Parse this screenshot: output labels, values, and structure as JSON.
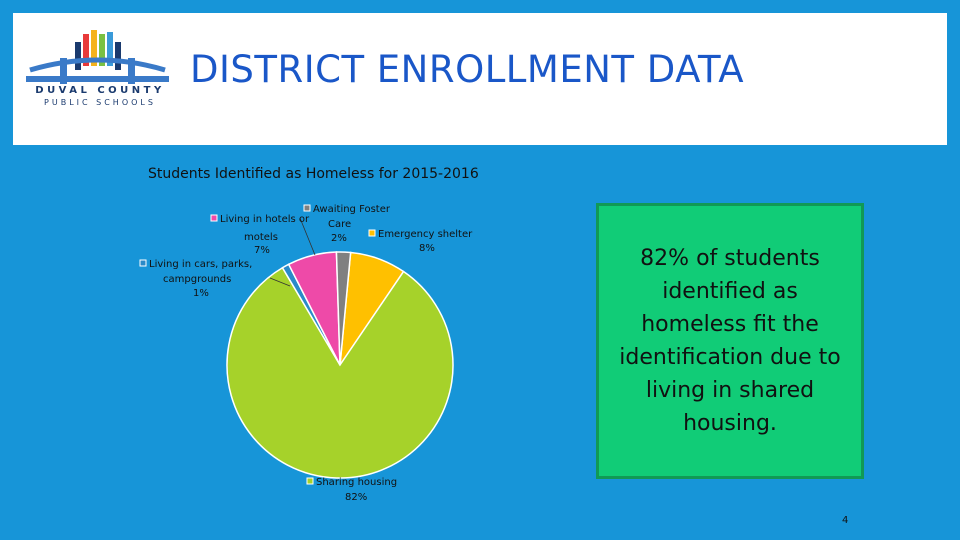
{
  "header": {
    "title": "DISTRICT ENROLLMENT DATA",
    "logo_line1": "DUVAL COUNTY",
    "logo_line2": "PUBLIC SCHOOLS"
  },
  "chart_data": {
    "type": "pie",
    "title": "Students Identified as Homeless for 2015-2016",
    "slices": [
      {
        "label": "Emergency shelter",
        "value": 8,
        "value_label": "8%",
        "color": "#ffc000"
      },
      {
        "label": "Sharing housing",
        "value": 82,
        "value_label": "82%",
        "color": "#a6d22a"
      },
      {
        "label": "Living in cars, parks, campgrounds",
        "value": 1,
        "value_label": "1%",
        "color": "#2a8ac8"
      },
      {
        "label": "Living in hotels or motels",
        "value": 7,
        "value_label": "7%",
        "color": "#ee4aa8"
      },
      {
        "label": "Awaiting Foster Care",
        "value": 2,
        "value_label": "2%",
        "color": "#808080"
      }
    ]
  },
  "callout": {
    "text": "82% of students identified as homeless fit the identification due to living in shared housing."
  },
  "footer": {
    "page_number": "4"
  },
  "colors": {
    "background": "#1795d8",
    "title": "#1a57c8",
    "callout_fill": "#11cc77"
  }
}
